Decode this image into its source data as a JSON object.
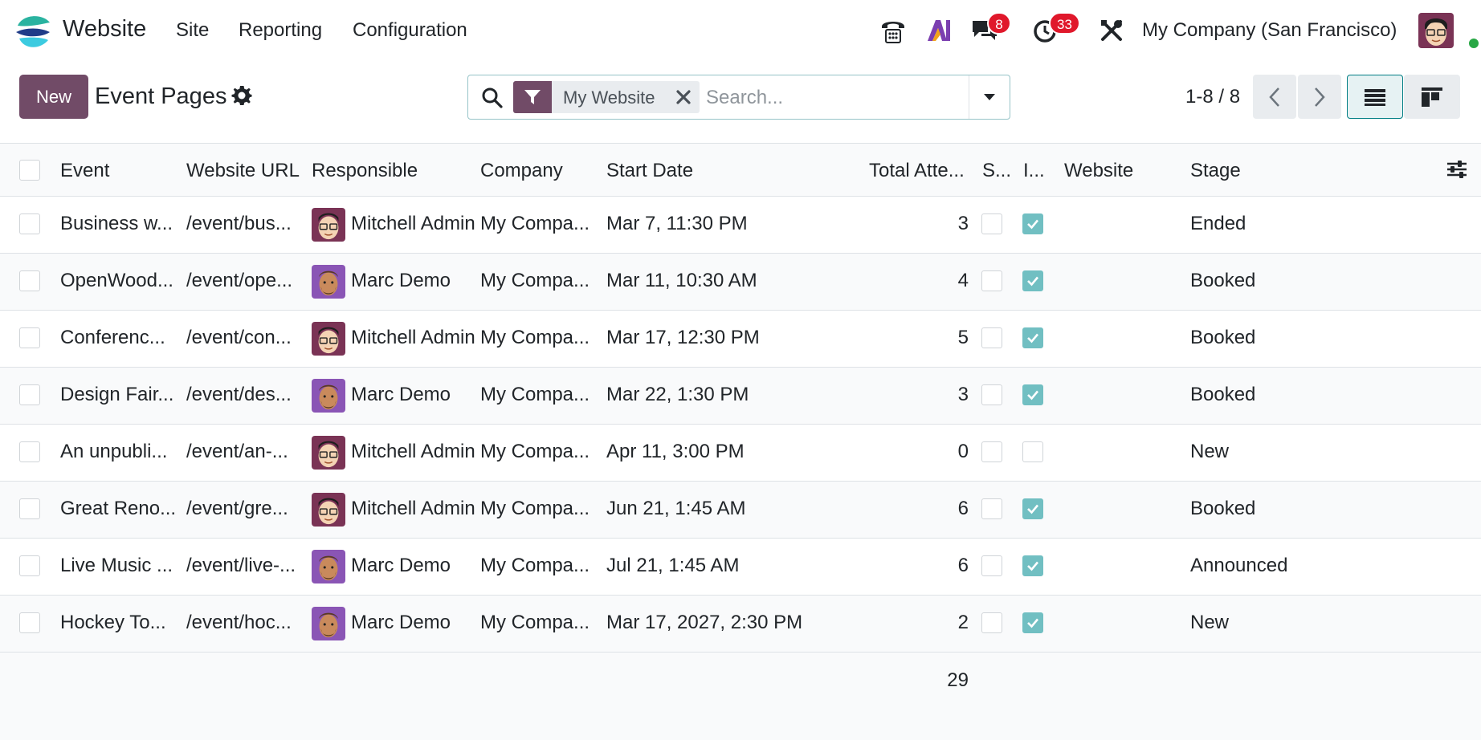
{
  "navbar": {
    "app_name": "Website",
    "menus": [
      "Site",
      "Reporting",
      "Configuration"
    ],
    "icons": [
      "phone-icon",
      "ai-icon",
      "messages-icon",
      "activities-icon",
      "debug-tools-icon"
    ],
    "messages_count": "8",
    "activities_count": "33",
    "company": "My Company (San Francisco)"
  },
  "control": {
    "new_label": "New",
    "title": "Event Pages",
    "facet_label": "My Website",
    "search_placeholder": "Search...",
    "pager": "1-8 / 8"
  },
  "table": {
    "headers": {
      "event": "Event",
      "website_url": "Website URL",
      "responsible": "Responsible",
      "company": "Company",
      "start_date": "Start Date",
      "total_attendees": "Total Atte...",
      "s": "S...",
      "i": "I...",
      "website": "Website",
      "stage": "Stage"
    },
    "rows": [
      {
        "event": "Business w...",
        "url": "/event/bus...",
        "responsible": "Mitchell Admin",
        "avatar": "mitchell",
        "company": "My Compa...",
        "start": "Mar 7, 11:30 PM",
        "attendees": "3",
        "s_checked": false,
        "i_checked": true,
        "website": "",
        "stage": "Ended"
      },
      {
        "event": "OpenWood...",
        "url": "/event/ope...",
        "responsible": "Marc Demo",
        "avatar": "marc",
        "company": "My Compa...",
        "start": "Mar 11, 10:30 AM",
        "attendees": "4",
        "s_checked": false,
        "i_checked": true,
        "website": "",
        "stage": "Booked"
      },
      {
        "event": "Conferenc...",
        "url": "/event/con...",
        "responsible": "Mitchell Admin",
        "avatar": "mitchell",
        "company": "My Compa...",
        "start": "Mar 17, 12:30 PM",
        "attendees": "5",
        "s_checked": false,
        "i_checked": true,
        "website": "",
        "stage": "Booked"
      },
      {
        "event": "Design Fair...",
        "url": "/event/des...",
        "responsible": "Marc Demo",
        "avatar": "marc",
        "company": "My Compa...",
        "start": "Mar 22, 1:30 PM",
        "attendees": "3",
        "s_checked": false,
        "i_checked": true,
        "website": "",
        "stage": "Booked"
      },
      {
        "event": "An unpubli...",
        "url": "/event/an-...",
        "responsible": "Mitchell Admin",
        "avatar": "mitchell",
        "company": "My Compa...",
        "start": "Apr 11, 3:00 PM",
        "attendees": "0",
        "s_checked": false,
        "i_checked": false,
        "website": "",
        "stage": "New"
      },
      {
        "event": "Great Reno...",
        "url": "/event/gre...",
        "responsible": "Mitchell Admin",
        "avatar": "mitchell",
        "company": "My Compa...",
        "start": "Jun 21, 1:45 AM",
        "attendees": "6",
        "s_checked": false,
        "i_checked": true,
        "website": "",
        "stage": "Booked"
      },
      {
        "event": "Live Music ...",
        "url": "/event/live-...",
        "responsible": "Marc Demo",
        "avatar": "marc",
        "company": "My Compa...",
        "start": "Jul 21, 1:45 AM",
        "attendees": "6",
        "s_checked": false,
        "i_checked": true,
        "website": "",
        "stage": "Announced"
      },
      {
        "event": "Hockey To...",
        "url": "/event/hoc...",
        "responsible": "Marc Demo",
        "avatar": "marc",
        "company": "My Compa...",
        "start": "Mar 17, 2027, 2:30 PM",
        "attendees": "2",
        "s_checked": false,
        "i_checked": true,
        "website": "",
        "stage": "New"
      }
    ],
    "total_attendees": "29"
  },
  "colors": {
    "brand": "#714b67",
    "accent": "#017e84",
    "badge": "#e0182b",
    "checkbox_checked": "#71bfc2"
  }
}
